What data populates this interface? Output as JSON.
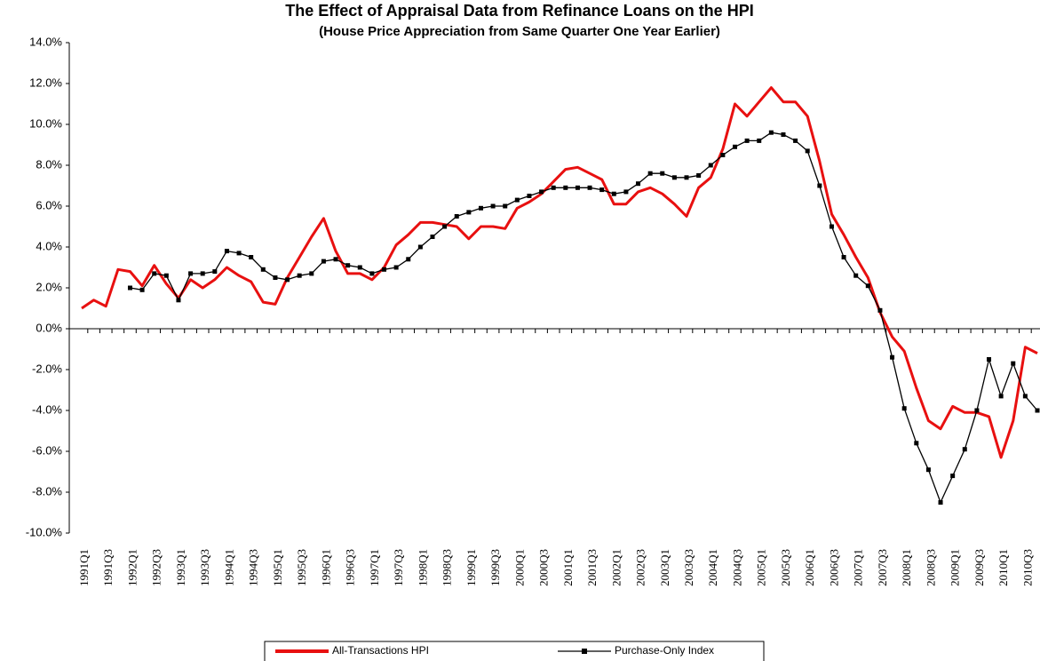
{
  "chart_data": {
    "type": "line",
    "title": "The Effect of Appraisal Data from Refinance Loans on the HPI",
    "subtitle": "(House Price Appreciation from Same Quarter One Year Earlier)",
    "categories": [
      "1991Q1",
      null,
      "1991Q3",
      null,
      "1992Q1",
      null,
      "1992Q3",
      null,
      "1993Q1",
      null,
      "1993Q3",
      null,
      "1994Q1",
      null,
      "1994Q3",
      null,
      "1995Q1",
      null,
      "1995Q3",
      null,
      "1996Q1",
      null,
      "1996Q3",
      null,
      "1997Q1",
      null,
      "1997Q3",
      null,
      "1998Q1",
      null,
      "1998Q3",
      null,
      "1999Q1",
      null,
      "1999Q3",
      null,
      "2000Q1",
      null,
      "2000Q3",
      null,
      "2001Q1",
      null,
      "2001Q3",
      null,
      "2002Q1",
      null,
      "2002Q3",
      null,
      "2003Q1",
      null,
      "2003Q3",
      null,
      "2004Q1",
      null,
      "2004Q3",
      null,
      "2005Q1",
      null,
      "2005Q3",
      null,
      "2006Q1",
      null,
      "2006Q3",
      null,
      "2007Q1",
      null,
      "2007Q3",
      null,
      "2008Q1",
      null,
      "2008Q3",
      null,
      "2009Q1",
      null,
      "2009Q3",
      null,
      "2010Q1",
      null,
      "2010Q3",
      null
    ],
    "series": [
      {
        "name": "All-Transactions HPI",
        "color": "#e81010",
        "values": [
          1.0,
          1.4,
          1.1,
          2.9,
          2.8,
          2.1,
          3.1,
          2.2,
          1.5,
          2.4,
          2.0,
          2.4,
          3.0,
          2.6,
          2.3,
          1.3,
          1.2,
          2.5,
          3.5,
          4.5,
          5.4,
          3.8,
          2.7,
          2.7,
          2.4,
          3.0,
          4.1,
          4.6,
          5.2,
          5.2,
          5.1,
          5.0,
          4.4,
          5.0,
          5.0,
          4.9,
          5.9,
          6.2,
          6.6,
          7.2,
          7.8,
          7.9,
          7.6,
          7.3,
          6.1,
          6.1,
          6.7,
          6.9,
          6.6,
          6.1,
          5.5,
          6.9,
          7.4,
          8.8,
          11.0,
          10.4,
          11.1,
          11.8,
          11.1,
          11.1,
          10.4,
          8.2,
          5.6,
          4.6,
          3.5,
          2.5,
          0.8,
          -0.4,
          -1.1,
          -2.9,
          -4.5,
          -4.9,
          -3.8,
          -4.1,
          -4.1,
          -4.3,
          -6.3,
          -4.5,
          -0.9,
          -1.2
        ]
      },
      {
        "name": "Purchase-Only Index",
        "color": "#000000",
        "values": [
          null,
          null,
          null,
          null,
          2.0,
          1.9,
          2.7,
          2.6,
          1.4,
          2.7,
          2.7,
          2.8,
          3.8,
          3.7,
          3.5,
          2.9,
          2.5,
          2.4,
          2.6,
          2.7,
          3.3,
          3.4,
          3.1,
          3.0,
          2.7,
          2.9,
          3.0,
          3.4,
          4.0,
          4.5,
          5.0,
          5.5,
          5.7,
          5.9,
          6.0,
          6.0,
          6.3,
          6.5,
          6.7,
          6.9,
          6.9,
          6.9,
          6.9,
          6.8,
          6.6,
          6.7,
          7.1,
          7.6,
          7.6,
          7.4,
          7.4,
          7.5,
          8.0,
          8.5,
          8.9,
          9.2,
          9.2,
          9.6,
          9.5,
          9.2,
          8.7,
          7.0,
          5.0,
          3.5,
          2.6,
          2.1,
          0.9,
          -1.4,
          -3.9,
          -5.6,
          -6.9,
          -8.5,
          -7.2,
          -5.9,
          -4.0,
          -1.5,
          -3.3,
          -1.7,
          -3.3,
          -4.0
        ]
      }
    ],
    "ylim": [
      -10,
      14
    ],
    "yticks": [
      {
        "value": 14,
        "label": "14.0%"
      },
      {
        "value": 12,
        "label": "12.0%"
      },
      {
        "value": 10,
        "label": "10.0%"
      },
      {
        "value": 8,
        "label": "8.0%"
      },
      {
        "value": 6,
        "label": "6.0%"
      },
      {
        "value": 4,
        "label": "4.0%"
      },
      {
        "value": 2,
        "label": "2.0%"
      },
      {
        "value": 0,
        "label": "0.0%"
      },
      {
        "value": -2,
        "label": "-2.0%"
      },
      {
        "value": -4,
        "label": "-4.0%"
      },
      {
        "value": -6,
        "label": "-6.0%"
      },
      {
        "value": -8,
        "label": "-8.0%"
      },
      {
        "value": -10,
        "label": "-10.0%"
      }
    ],
    "grid": false,
    "legend": "bottom"
  }
}
